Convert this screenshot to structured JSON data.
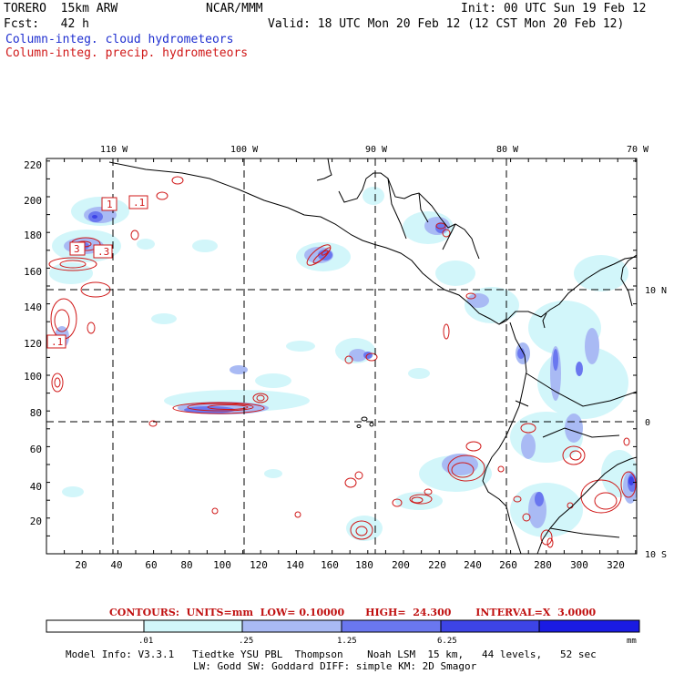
{
  "header": {
    "model": "TORERO  15km ARW",
    "org": "NCAR/MMM",
    "init": "Init: 00 UTC Sun 19 Feb 12",
    "fcst": "Fcst:   42 h",
    "valid": "Valid: 18 UTC Mon 20 Feb 12 (12 CST Mon 20 Feb 12)",
    "field1": "Column-integ. cloud hydrometeors",
    "field2": "Column-integ. precip. hydrometeors"
  },
  "colors": {
    "cloud_light": "#d2f6fa",
    "cloud_med": "#a9baf4",
    "cloud_dark": "#6a77ef",
    "cloud_darker": "#3d44e6",
    "cloud_darkest": "#1a1be3",
    "precip": "#d01818",
    "coast": "#000000"
  },
  "map": {
    "lon_labels": [
      "110 W",
      "100 W",
      "90 W",
      "80 W",
      "70 W"
    ],
    "lat_labels": [
      "10 N",
      "0",
      "10 S"
    ],
    "y_ticks": [
      "20",
      "40",
      "60",
      "80",
      "100",
      "120",
      "140",
      "160",
      "180",
      "200",
      "220"
    ],
    "x_ticks": [
      "20",
      "40",
      "60",
      "80",
      "100",
      "120",
      "140",
      "160",
      "180",
      "200",
      "220",
      "240",
      "260",
      "280",
      "300",
      "320"
    ],
    "boxes": [
      "1",
      ".1",
      "3",
      ".3",
      ".1"
    ]
  },
  "legend": {
    "contours": "CONTOURS:  UNITS=mm  LOW= 0.10000      HIGH=  24.300       INTERVAL=X  3.0000",
    "labels": [
      ".01",
      ".25",
      "1.25",
      "6.25"
    ],
    "unit": "mm"
  },
  "footer": {
    "line1": "Model Info: V3.3.1   Tiedtke YSU PBL  Thompson    Noah LSM  15 km,   44 levels,   52 sec",
    "line2": "LW: Godd SW: Goddard DIFF: simple KM: 2D Smagor"
  }
}
